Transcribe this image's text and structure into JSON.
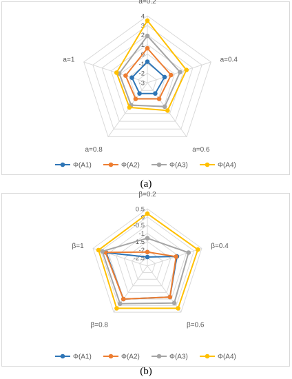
{
  "colors": {
    "A1": "#2e75b6",
    "A2": "#ed7d31",
    "A3": "#a5a5a5",
    "A4": "#ffc000",
    "grid": "#d9d9d9",
    "text": "#595959"
  },
  "chart_data": [
    {
      "type": "radar",
      "caption": "(a)",
      "axes": [
        "a=0.2",
        "a=0.4",
        "a=0.6",
        "a=0.8",
        "a=1"
      ],
      "ticks": [
        4,
        3,
        2,
        1,
        0,
        -1,
        -2,
        -3
      ],
      "tick_labels": [
        "4",
        "3",
        "2",
        "1",
        "0",
        "-1",
        "-2",
        "-3"
      ],
      "range": [
        -3,
        4
      ],
      "legend_position": "bottom",
      "series": [
        {
          "name": "Φ(A1)",
          "color": "#2e75b6",
          "values": [
            -0.8,
            -1.1,
            -1.6,
            -1.6,
            -1.3
          ]
        },
        {
          "name": "Φ(A2)",
          "color": "#ed7d31",
          "values": [
            0.6,
            -0.4,
            -0.9,
            -0.9,
            -0.6
          ]
        },
        {
          "name": "Φ(A3)",
          "color": "#a5a5a5",
          "values": [
            1.9,
            0.6,
            0.1,
            -0.1,
            0.1
          ]
        },
        {
          "name": "Φ(A4)",
          "color": "#ffc000",
          "values": [
            3.5,
            1.3,
            0.6,
            0.2,
            0.4
          ]
        }
      ]
    },
    {
      "type": "radar",
      "caption": "(b)",
      "axes": [
        "β=0.2",
        "β=0.4",
        "β=0.6",
        "β=0.8",
        "β=1"
      ],
      "ticks": [
        0.5,
        0,
        -0.5,
        -1,
        -1.5,
        -2,
        -2.5
      ],
      "tick_labels": [
        "0.5",
        "0",
        "-0.5",
        "-1",
        "-1.5",
        "-2",
        "-2.5"
      ],
      "range": [
        -3,
        0.5
      ],
      "legend_position": "bottom",
      "series": [
        {
          "name": "Φ(A1)",
          "color": "#2e75b6",
          "values": [
            -2.45,
            -1.1,
            -0.65,
            -0.5,
            -0.35
          ]
        },
        {
          "name": "Φ(A2)",
          "color": "#ed7d31",
          "values": [
            -2.15,
            -1.15,
            -0.65,
            -0.5,
            -0.3
          ]
        },
        {
          "name": "Φ(A3)",
          "color": "#a5a5a5",
          "values": [
            -1.3,
            -0.35,
            -0.2,
            -0.15,
            -0.1
          ]
        },
        {
          "name": "Φ(A4)",
          "color": "#ffc000",
          "values": [
            0.2,
            0.25,
            0.2,
            0.2,
            0.15
          ]
        }
      ]
    }
  ]
}
